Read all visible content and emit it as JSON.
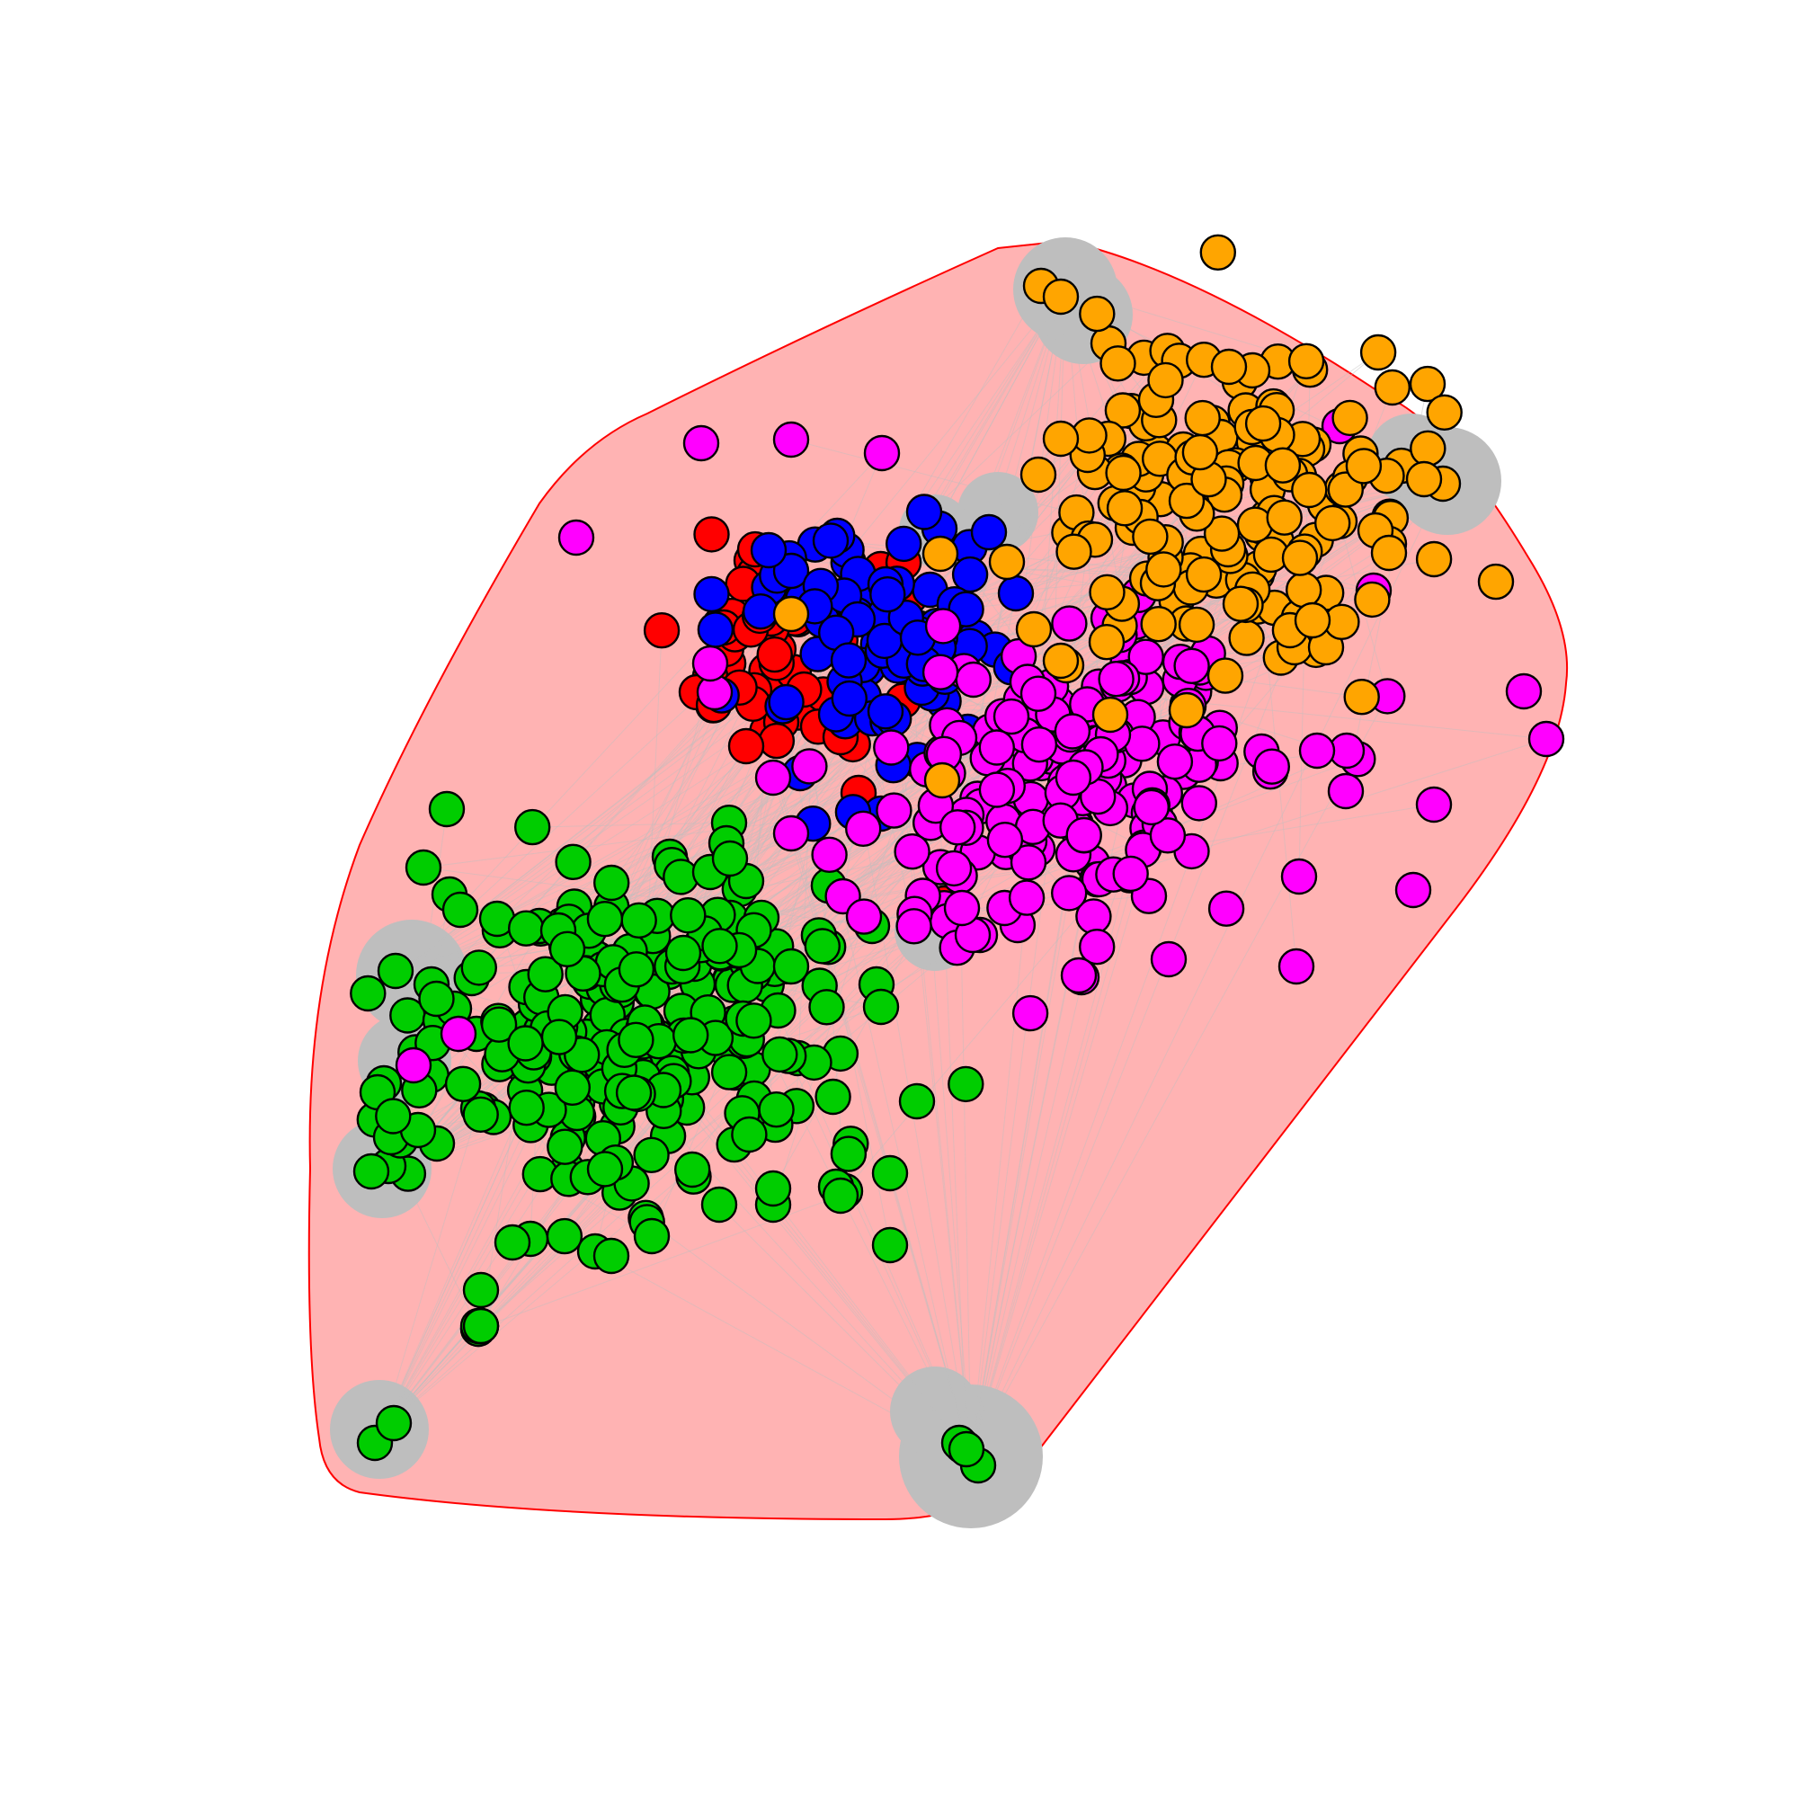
{
  "diagram": {
    "type": "network-graph",
    "node_colors": {
      "red": "#FF0000",
      "blue": "#0000FF",
      "orange": "#FFA500",
      "magenta": "#FF00FF",
      "green": "#00CD00"
    },
    "node_outline": "#000000",
    "edge_color": "#BEBEBE",
    "hull_fill": "#FFB3B3",
    "hull_stroke": "#FF0000",
    "highlight_blob_color": "#BEBEBE",
    "communities": [
      {
        "id": "red",
        "approx_node_count": 60
      },
      {
        "id": "blue",
        "approx_node_count": 90
      },
      {
        "id": "orange",
        "approx_node_count": 160
      },
      {
        "id": "magenta",
        "approx_node_count": 170
      },
      {
        "id": "green",
        "approx_node_count": 260
      }
    ]
  }
}
